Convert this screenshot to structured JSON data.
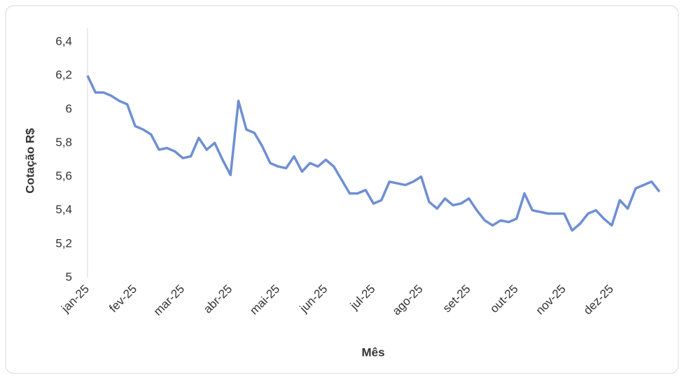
{
  "chart_data": {
    "type": "line",
    "y_label": "Cotação R$",
    "x_label": "Mês",
    "color": "#6f8fd3",
    "categories": [
      "jan-25",
      null,
      null,
      null,
      null,
      null,
      "fev-25",
      null,
      null,
      null,
      null,
      null,
      "mar-25",
      null,
      null,
      null,
      null,
      null,
      "abr-25",
      null,
      null,
      null,
      null,
      null,
      "mai-25",
      null,
      null,
      null,
      null,
      null,
      "jun-25",
      null,
      null,
      null,
      null,
      null,
      "jul-25",
      null,
      null,
      null,
      null,
      null,
      "ago-25",
      null,
      null,
      null,
      null,
      null,
      "set-25",
      null,
      null,
      null,
      null,
      null,
      "out-25",
      null,
      null,
      null,
      null,
      null,
      "nov-25",
      null,
      null,
      null,
      null,
      null,
      "dez-25",
      null,
      null,
      null,
      null,
      null,
      null
    ],
    "values": [
      6.2,
      6.1,
      6.1,
      6.08,
      6.05,
      6.03,
      5.9,
      5.88,
      5.85,
      5.76,
      5.77,
      5.75,
      5.71,
      5.72,
      5.83,
      5.76,
      5.8,
      5.7,
      5.61,
      6.05,
      5.88,
      5.86,
      5.78,
      5.68,
      5.66,
      5.65,
      5.72,
      5.63,
      5.68,
      5.66,
      5.7,
      5.66,
      5.58,
      5.5,
      5.5,
      5.52,
      5.44,
      5.46,
      5.57,
      5.56,
      5.55,
      5.57,
      5.6,
      5.45,
      5.41,
      5.47,
      5.43,
      5.44,
      5.47,
      5.4,
      5.34,
      5.31,
      5.34,
      5.33,
      5.35,
      5.5,
      5.4,
      5.39,
      5.38,
      5.38,
      5.38,
      5.28,
      5.32,
      5.38,
      5.4,
      5.35,
      5.31,
      5.46,
      5.41,
      5.53,
      5.55,
      5.57,
      5.51
    ],
    "ylim": [
      5,
      6.4
    ],
    "yticks": [
      5,
      {
        "value": 5.2,
        "label": "5,2"
      },
      {
        "value": 5.4,
        "label": "5,4"
      },
      {
        "value": 5.6,
        "label": "5,6"
      },
      {
        "value": 5.8,
        "label": "5,8"
      },
      6,
      {
        "value": 6.2,
        "label": "6,2"
      },
      {
        "value": 6.4,
        "label": "6,4"
      }
    ],
    "grid": false
  }
}
